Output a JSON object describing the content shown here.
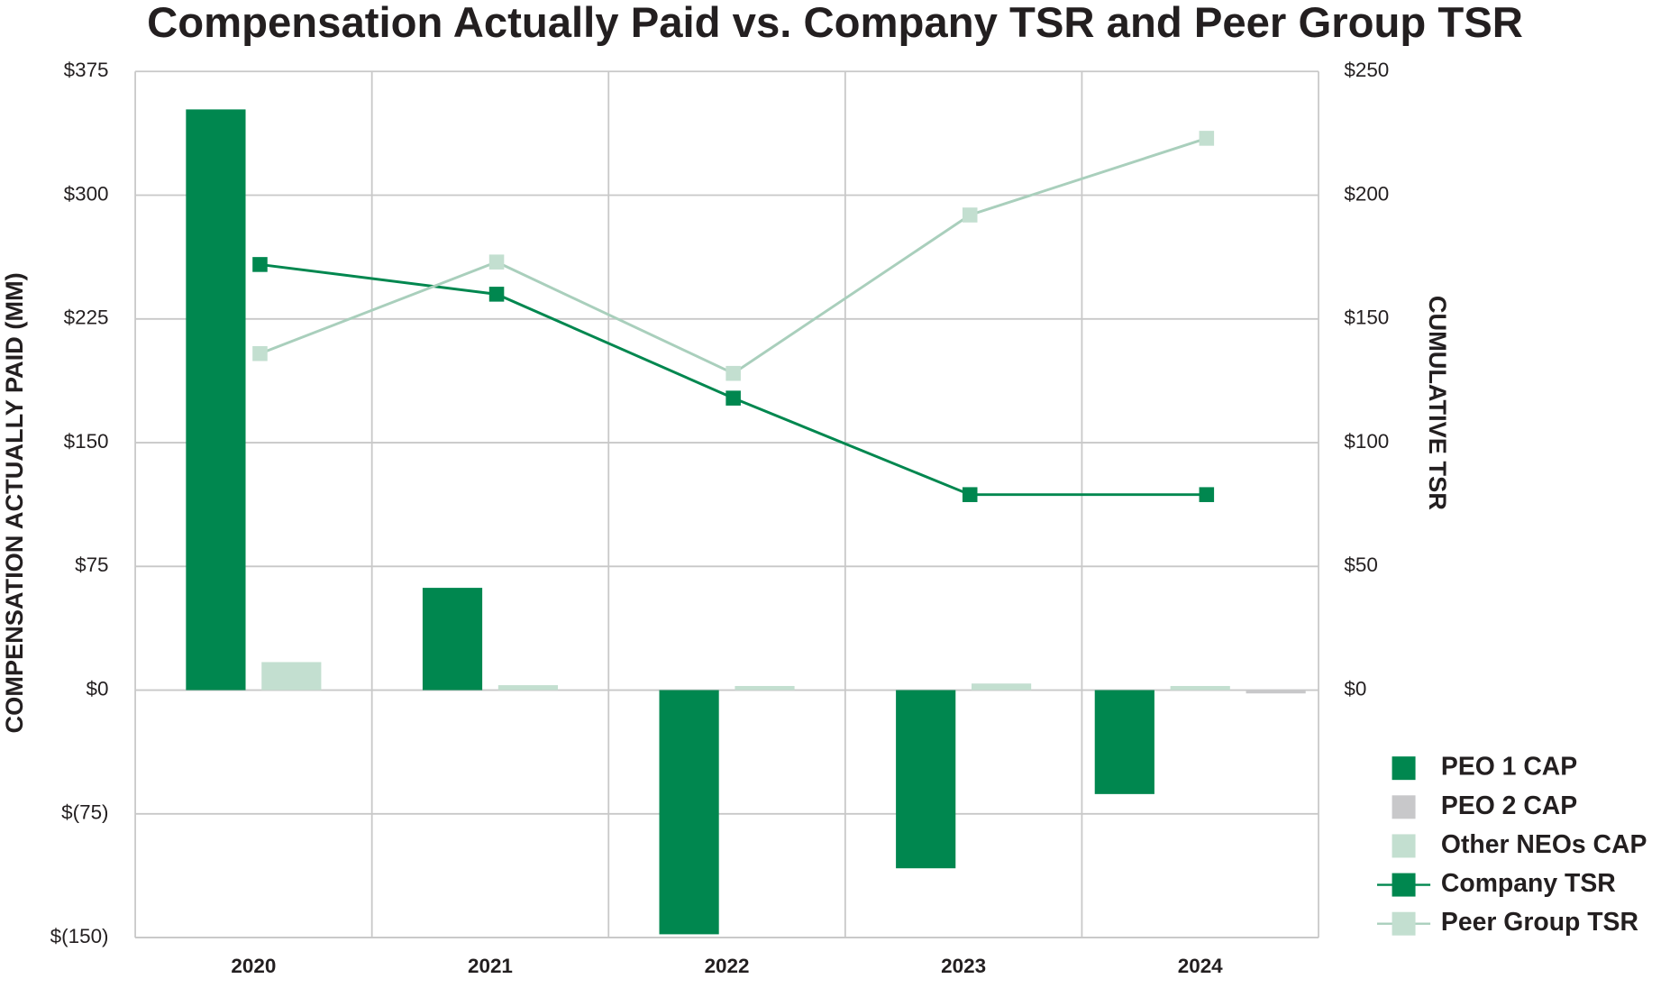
{
  "chart_data": {
    "type": "bar",
    "title": "Compensation Actually Paid vs. Company TSR and Peer Group TSR",
    "y_label": "COMPENSATION ACTUALLY PAID (MM)",
    "y2_label": "CUMULATIVE TSR",
    "categories": [
      "2020",
      "2021",
      "2022",
      "2023",
      "2024"
    ],
    "series": [
      {
        "name": "PEO 1 CAP",
        "type": "bar",
        "color": "#00874f",
        "values": [
          352,
          62,
          -148,
          -108,
          -63
        ]
      },
      {
        "name": "PEO 2 CAP",
        "type": "bar",
        "color": "#c8c8ca",
        "values": [
          null,
          null,
          null,
          null,
          -2
        ]
      },
      {
        "name": "Other NEOs CAP",
        "type": "bar",
        "color": "#c3dfd0",
        "values": [
          17,
          3,
          2.5,
          4,
          2.5
        ]
      },
      {
        "name": "Company TSR",
        "type": "line",
        "axis": "y2",
        "color": "#00874f",
        "values": [
          172,
          160,
          118,
          79,
          79
        ]
      },
      {
        "name": "Peer Group TSR",
        "type": "line",
        "axis": "y2",
        "color": "#a9cfbc",
        "marker_color": "#c3dfd0",
        "values": [
          136,
          173,
          128,
          192,
          223
        ]
      }
    ],
    "ylim": [
      -150,
      375
    ],
    "yticks": [
      {
        "value": -150,
        "label": "$(150)"
      },
      {
        "value": -75,
        "label": "$(75)"
      },
      {
        "value": 0,
        "label": "$0"
      },
      {
        "value": 75,
        "label": "$75"
      },
      {
        "value": 150,
        "label": "$150"
      },
      {
        "value": 225,
        "label": "$225"
      },
      {
        "value": 300,
        "label": "$300"
      },
      {
        "value": 375,
        "label": "$375"
      }
    ],
    "y2lim": [
      -100,
      250
    ],
    "y2ticks": [
      {
        "value": 0,
        "label": "$0"
      },
      {
        "value": 50,
        "label": "$50"
      },
      {
        "value": 100,
        "label": "$100"
      },
      {
        "value": 150,
        "label": "$150"
      },
      {
        "value": 200,
        "label": "$200"
      },
      {
        "value": 250,
        "label": "$250"
      }
    ],
    "grid": true,
    "legend": "right"
  }
}
